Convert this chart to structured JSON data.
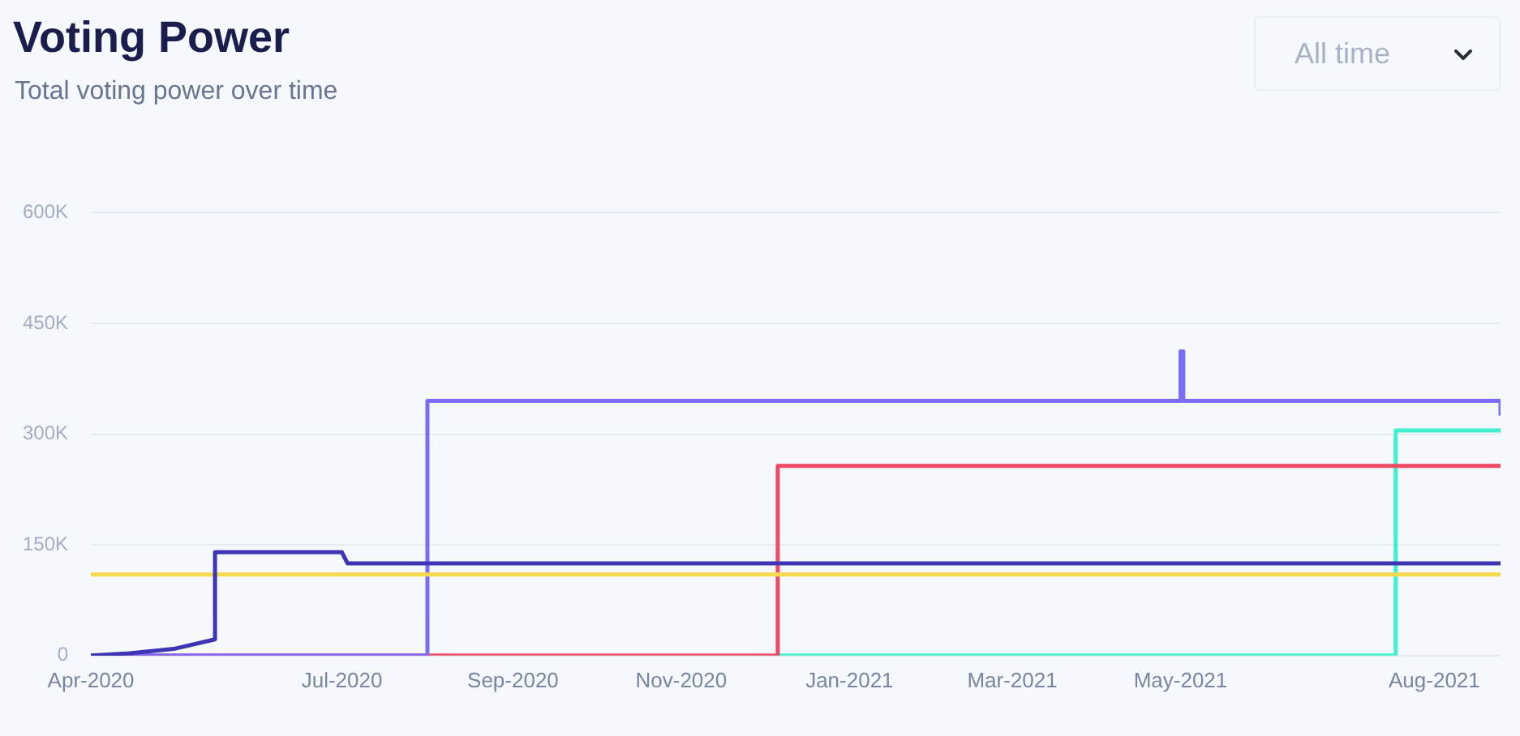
{
  "chart_data": {
    "type": "step",
    "title": "Voting Power",
    "subtitle": "Total voting power over time",
    "annotations": [
      "All time"
    ],
    "xlim": [
      "2020-04-01",
      "2021-08-25"
    ],
    "xticks": [
      {
        "value": "2020-04-01",
        "label": "Apr-2020"
      },
      {
        "value": "2020-07-01",
        "label": "Jul-2020"
      },
      {
        "value": "2020-09-01",
        "label": "Sep-2020"
      },
      {
        "value": "2020-11-01",
        "label": "Nov-2020"
      },
      {
        "value": "2021-01-01",
        "label": "Jan-2021"
      },
      {
        "value": "2021-03-01",
        "label": "Mar-2021"
      },
      {
        "value": "2021-05-01",
        "label": "May-2021"
      },
      {
        "value": "2021-08-01",
        "label": "Aug-2021"
      }
    ],
    "ylim": [
      0,
      600000
    ],
    "yticks": [
      {
        "value": 0,
        "label": "0"
      },
      {
        "value": 150000,
        "label": "150K"
      },
      {
        "value": 300000,
        "label": "300K"
      },
      {
        "value": 450000,
        "label": "450K"
      },
      {
        "value": 600000,
        "label": "600K"
      }
    ],
    "grid": "y",
    "legend": false,
    "marker": "none",
    "series": [
      {
        "color": "#3d35b5",
        "type": "line",
        "x": [
          "2020-04-01",
          "2020-04-15",
          "2020-05-01",
          "2020-05-16",
          "2020-05-16",
          "2020-07-01",
          "2020-07-03",
          "2021-08-25"
        ],
        "values": [
          0,
          3000,
          9000,
          22000,
          140000,
          140000,
          125000,
          125000
        ]
      },
      {
        "color": "#f5d94e",
        "x": [
          "2020-04-01",
          "2021-08-25"
        ],
        "values": [
          110000,
          110000
        ]
      },
      {
        "color": "#7b6cf6",
        "x": [
          "2020-04-01",
          "2020-08-01",
          "2021-05-01",
          "2021-05-02",
          "2021-08-25"
        ],
        "values": [
          0,
          345000,
          412000,
          345000,
          325000
        ]
      },
      {
        "color": "#ee4a64",
        "x": [
          "2020-04-01",
          "2020-12-06",
          "2021-08-25"
        ],
        "values": [
          0,
          257000,
          257000
        ]
      },
      {
        "color": "#3ef0cf",
        "x": [
          "2020-12-06",
          "2021-07-18",
          "2021-08-25"
        ],
        "values": [
          0,
          305000,
          305000
        ]
      }
    ]
  }
}
